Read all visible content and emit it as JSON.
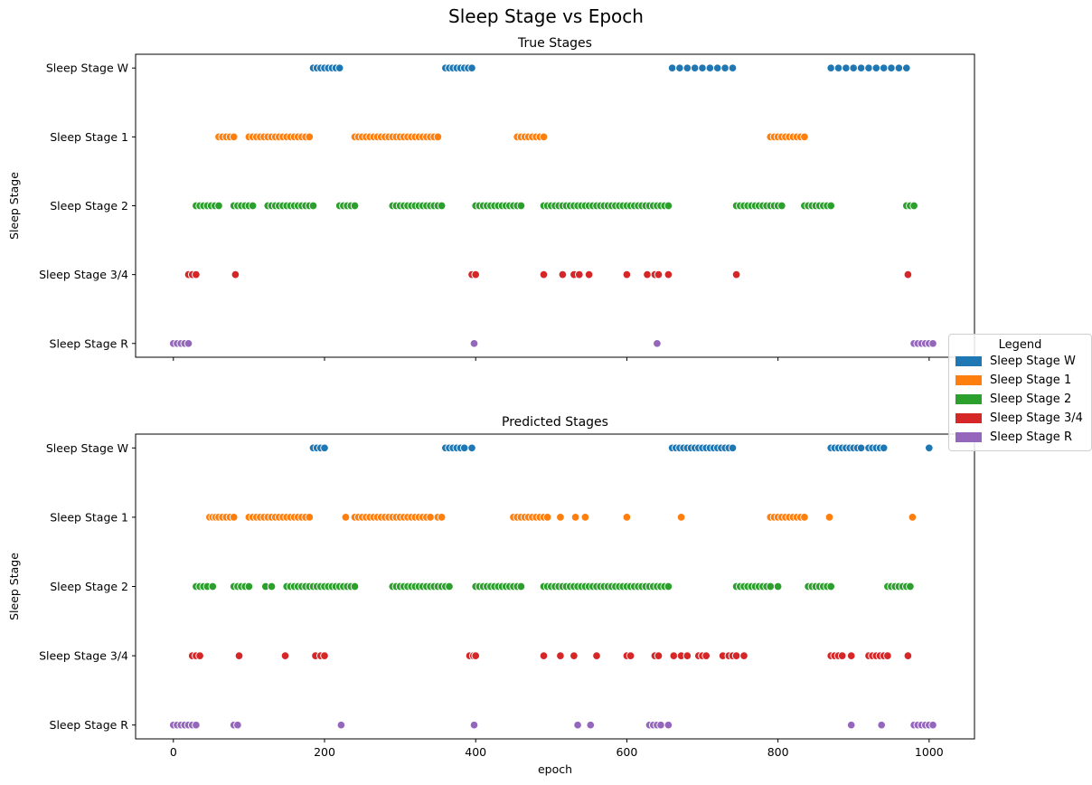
{
  "figure": {
    "title": "Sleep Stage vs Epoch"
  },
  "colors": {
    "Sleep Stage W": "#1f77b4",
    "Sleep Stage 1": "#ff7f0e",
    "Sleep Stage 2": "#2ca02c",
    "Sleep Stage 3/4": "#d62728",
    "Sleep Stage R": "#9467bd"
  },
  "legend": {
    "title": "Legend",
    "items": [
      {
        "label": "Sleep Stage W",
        "color": "#1f77b4"
      },
      {
        "label": "Sleep Stage 1",
        "color": "#ff7f0e"
      },
      {
        "label": "Sleep Stage 2",
        "color": "#2ca02c"
      },
      {
        "label": "Sleep Stage 3/4",
        "color": "#d62728"
      },
      {
        "label": "Sleep Stage R",
        "color": "#9467bd"
      }
    ]
  },
  "chart_data": [
    {
      "type": "scatter",
      "title": "True Stages",
      "xlabel": "",
      "ylabel": "Sleep Stage",
      "xlim": [
        -50,
        1060
      ],
      "xticks": [
        0,
        200,
        400,
        600,
        800,
        1000
      ],
      "show_xticklabels": false,
      "y_categories": [
        "Sleep Stage W",
        "Sleep Stage 1",
        "Sleep Stage 2",
        "Sleep Stage 3/4",
        "Sleep Stage R"
      ],
      "series": [
        {
          "category": "Sleep Stage W",
          "x": [
            185,
            190,
            195,
            200,
            205,
            210,
            215,
            220,
            360,
            365,
            370,
            375,
            380,
            385,
            390,
            395,
            660,
            670,
            680,
            690,
            700,
            710,
            720,
            730,
            740,
            870,
            880,
            890,
            900,
            910,
            920,
            930,
            940,
            950,
            960,
            970
          ]
        },
        {
          "category": "Sleep Stage 1",
          "x": [
            60,
            65,
            70,
            75,
            80,
            100,
            105,
            110,
            115,
            120,
            125,
            130,
            135,
            140,
            145,
            150,
            155,
            160,
            165,
            170,
            175,
            180,
            240,
            245,
            250,
            255,
            260,
            265,
            270,
            275,
            280,
            285,
            290,
            295,
            300,
            305,
            310,
            315,
            320,
            325,
            330,
            335,
            340,
            345,
            350,
            455,
            460,
            465,
            470,
            475,
            480,
            485,
            490,
            790,
            795,
            800,
            805,
            810,
            815,
            820,
            825,
            830,
            835
          ]
        },
        {
          "category": "Sleep Stage 2",
          "x": [
            30,
            35,
            40,
            45,
            50,
            55,
            60,
            80,
            85,
            90,
            95,
            100,
            105,
            125,
            130,
            135,
            140,
            145,
            150,
            155,
            160,
            165,
            170,
            175,
            180,
            185,
            220,
            225,
            230,
            235,
            240,
            290,
            295,
            300,
            305,
            310,
            315,
            320,
            325,
            330,
            335,
            340,
            345,
            350,
            355,
            400,
            405,
            410,
            415,
            420,
            425,
            430,
            435,
            440,
            445,
            450,
            455,
            460,
            490,
            495,
            500,
            505,
            510,
            515,
            520,
            525,
            530,
            535,
            540,
            545,
            550,
            555,
            560,
            565,
            570,
            575,
            580,
            585,
            590,
            595,
            600,
            605,
            610,
            615,
            620,
            625,
            630,
            635,
            640,
            645,
            650,
            655,
            745,
            750,
            755,
            760,
            765,
            770,
            775,
            780,
            785,
            790,
            795,
            800,
            805,
            835,
            840,
            845,
            850,
            855,
            860,
            865,
            870,
            970,
            975,
            980
          ]
        },
        {
          "category": "Sleep Stage 3/4",
          "x": [
            20,
            25,
            30,
            82,
            395,
            400,
            490,
            515,
            530,
            537,
            550,
            600,
            627,
            637,
            642,
            655,
            745,
            972
          ]
        },
        {
          "category": "Sleep Stage R",
          "x": [
            0,
            5,
            10,
            15,
            20,
            398,
            640,
            980,
            985,
            990,
            995,
            1000,
            1005
          ]
        }
      ]
    },
    {
      "type": "scatter",
      "title": "Predicted Stages",
      "xlabel": "epoch",
      "ylabel": "Sleep Stage",
      "xlim": [
        -50,
        1060
      ],
      "xticks": [
        0,
        200,
        400,
        600,
        800,
        1000
      ],
      "show_xticklabels": true,
      "y_categories": [
        "Sleep Stage W",
        "Sleep Stage 1",
        "Sleep Stage 2",
        "Sleep Stage 3/4",
        "Sleep Stage R"
      ],
      "series": [
        {
          "category": "Sleep Stage W",
          "x": [
            185,
            190,
            195,
            200,
            360,
            365,
            370,
            375,
            380,
            385,
            395,
            660,
            665,
            670,
            675,
            680,
            685,
            690,
            695,
            700,
            705,
            710,
            715,
            720,
            725,
            730,
            735,
            740,
            870,
            875,
            880,
            885,
            890,
            895,
            900,
            905,
            910,
            920,
            925,
            930,
            935,
            940,
            1000
          ]
        },
        {
          "category": "Sleep Stage 1",
          "x": [
            48,
            52,
            56,
            60,
            65,
            70,
            75,
            80,
            100,
            105,
            110,
            115,
            120,
            125,
            130,
            135,
            140,
            145,
            150,
            155,
            160,
            165,
            170,
            175,
            180,
            228,
            240,
            245,
            250,
            255,
            260,
            265,
            270,
            275,
            280,
            285,
            290,
            295,
            300,
            305,
            310,
            315,
            320,
            325,
            330,
            335,
            340,
            350,
            355,
            450,
            455,
            460,
            465,
            470,
            475,
            480,
            485,
            490,
            495,
            512,
            532,
            545,
            600,
            672,
            790,
            795,
            800,
            805,
            810,
            815,
            820,
            825,
            830,
            835,
            868,
            978
          ]
        },
        {
          "category": "Sleep Stage 2",
          "x": [
            30,
            35,
            40,
            45,
            52,
            80,
            85,
            90,
            95,
            100,
            122,
            130,
            150,
            155,
            160,
            165,
            170,
            175,
            180,
            185,
            190,
            195,
            200,
            205,
            210,
            215,
            220,
            225,
            230,
            235,
            240,
            290,
            295,
            300,
            305,
            310,
            315,
            320,
            325,
            330,
            335,
            340,
            345,
            350,
            355,
            360,
            365,
            400,
            405,
            410,
            415,
            420,
            425,
            430,
            435,
            440,
            445,
            450,
            455,
            460,
            490,
            495,
            500,
            505,
            510,
            515,
            520,
            525,
            530,
            535,
            540,
            545,
            550,
            555,
            560,
            565,
            570,
            575,
            580,
            585,
            590,
            595,
            600,
            605,
            610,
            615,
            620,
            625,
            630,
            635,
            640,
            645,
            650,
            655,
            745,
            750,
            755,
            760,
            765,
            770,
            775,
            780,
            785,
            790,
            800,
            840,
            845,
            850,
            855,
            860,
            865,
            870,
            945,
            950,
            955,
            960,
            965,
            970,
            975
          ]
        },
        {
          "category": "Sleep Stage 3/4",
          "x": [
            25,
            30,
            35,
            87,
            148,
            188,
            195,
            200,
            392,
            397,
            400,
            490,
            512,
            530,
            560,
            600,
            605,
            637,
            642,
            662,
            672,
            680,
            695,
            700,
            705,
            727,
            735,
            740,
            745,
            755,
            870,
            875,
            880,
            885,
            897,
            920,
            925,
            930,
            935,
            940,
            945,
            972
          ]
        },
        {
          "category": "Sleep Stage R",
          "x": [
            0,
            5,
            10,
            15,
            20,
            25,
            30,
            80,
            85,
            222,
            398,
            535,
            552,
            630,
            635,
            640,
            645,
            655,
            897,
            937,
            980,
            985,
            990,
            995,
            1000,
            1005
          ]
        }
      ]
    }
  ]
}
